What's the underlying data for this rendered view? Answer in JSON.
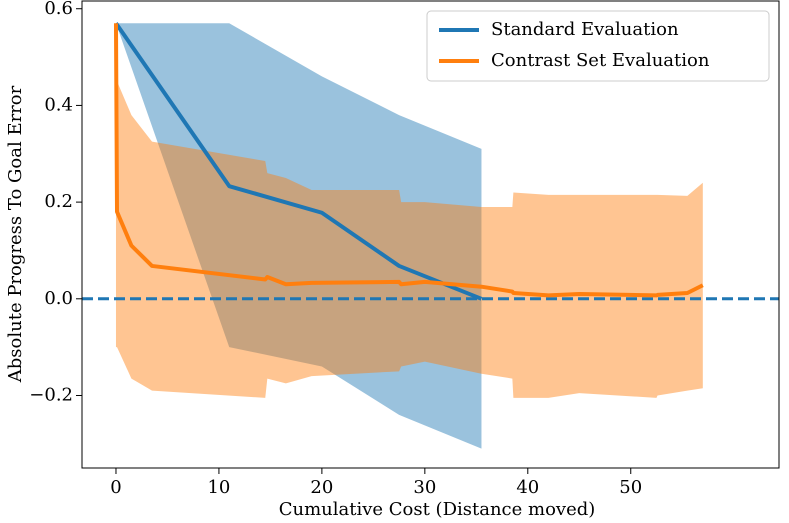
{
  "chart_data": {
    "type": "line",
    "xlabel": "Cumulative Cost (Distance moved)",
    "ylabel": "Absolute Progress To Goal Error",
    "xlim": [
      -3.3,
      64.4
    ],
    "ylim": [
      -0.35,
      0.616
    ],
    "xticks": [
      0,
      10,
      20,
      30,
      40,
      50
    ],
    "yticks": [
      {
        "value": -0.2,
        "label": "−0.2"
      },
      {
        "value": 0,
        "label": "0.0"
      },
      {
        "value": 0.2,
        "label": "0.2"
      },
      {
        "value": 0.4,
        "label": "0.4"
      },
      {
        "value": 0.6,
        "label": "0.6"
      }
    ],
    "legend": "upper right",
    "reference_line": {
      "value": 0,
      "style": "dashed",
      "color": "#1f77b4"
    },
    "series": [
      {
        "name": "Standard Evaluation",
        "color": "#1f77b4",
        "x": [
          0,
          11,
          20,
          27.5,
          35.5
        ],
        "values": [
          0.57,
          0.233,
          0.178,
          0.068,
          0.0
        ],
        "upper": [
          0.57,
          0.57,
          0.46,
          0.38,
          0.31
        ],
        "lower": [
          0.57,
          -0.1,
          -0.14,
          -0.24,
          -0.31
        ]
      },
      {
        "name": "Contrast Set Evaluation",
        "color": "#ff7f0e",
        "x": [
          0,
          0.1,
          1.5,
          3.5,
          14.5,
          14.7,
          16.5,
          19,
          27.5,
          27.7,
          30,
          35.5,
          38.5,
          38.6,
          42,
          45,
          52.5,
          52.6,
          55.5,
          57
        ],
        "values": [
          0.57,
          0.18,
          0.11,
          0.068,
          0.04,
          0.045,
          0.03,
          0.033,
          0.035,
          0.03,
          0.035,
          0.025,
          0.015,
          0.012,
          0.007,
          0.01,
          0.007,
          0.008,
          0.012,
          0.028
        ],
        "upper": [
          0.45,
          0.45,
          0.38,
          0.325,
          0.285,
          0.26,
          0.25,
          0.225,
          0.225,
          0.2,
          0.2,
          0.19,
          0.19,
          0.22,
          0.215,
          0.215,
          0.215,
          0.215,
          0.213,
          0.24
        ],
        "lower": [
          -0.1,
          -0.1,
          -0.165,
          -0.19,
          -0.205,
          -0.165,
          -0.175,
          -0.16,
          -0.15,
          -0.14,
          -0.13,
          -0.155,
          -0.165,
          -0.205,
          -0.205,
          -0.195,
          -0.205,
          -0.2,
          -0.19,
          -0.185
        ]
      }
    ]
  }
}
